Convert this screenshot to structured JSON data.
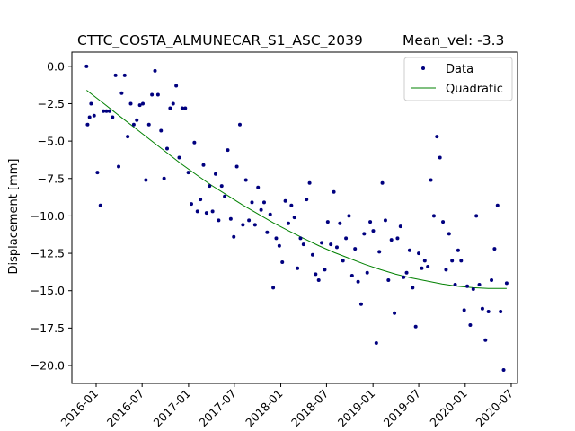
{
  "chart_data": {
    "type": "scatter",
    "title_left": "CTTC_COSTA_ALMUNECAR_S1_ASC_2039",
    "title_right": "Mean_vel: -3.3",
    "xlabel": "",
    "ylabel": "Displacement [mm]",
    "xlim": [
      "2015-09-27",
      "2020-07-26"
    ],
    "ylim": [
      -21.2,
      0.95
    ],
    "x_ticks": [
      "2016-01",
      "2016-07",
      "2017-01",
      "2017-07",
      "2018-01",
      "2018-07",
      "2019-01",
      "2019-07",
      "2020-01",
      "2020-07"
    ],
    "y_ticks": [
      0.0,
      -2.5,
      -5.0,
      -7.5,
      -10.0,
      -12.5,
      -15.0,
      -17.5,
      -20.0
    ],
    "y_tick_labels": [
      "0.0",
      "−2.5",
      "−5.0",
      "−7.5",
      "−10.0",
      "−12.5",
      "−15.0",
      "−17.5",
      "−20.0"
    ],
    "legend_position": "upper-right",
    "grid": false,
    "series": [
      {
        "name": "Data",
        "kind": "scatter",
        "color": "#00007f",
        "points": [
          [
            "2015-11-24",
            0.0
          ],
          [
            "2015-11-28",
            -3.9
          ],
          [
            "2015-12-06",
            -3.4
          ],
          [
            "2015-12-12",
            -2.5
          ],
          [
            "2015-12-24",
            -3.3
          ],
          [
            "2016-01-06",
            -7.1
          ],
          [
            "2016-01-18",
            -9.3
          ],
          [
            "2016-01-30",
            -3.0
          ],
          [
            "2016-02-11",
            -3.0
          ],
          [
            "2016-02-23",
            -3.0
          ],
          [
            "2016-03-06",
            -3.4
          ],
          [
            "2016-03-18",
            -0.6
          ],
          [
            "2016-03-30",
            -6.7
          ],
          [
            "2016-04-11",
            -1.8
          ],
          [
            "2016-04-23",
            -0.6
          ],
          [
            "2016-05-05",
            -4.7
          ],
          [
            "2016-05-17",
            -2.5
          ],
          [
            "2016-05-29",
            -3.9
          ],
          [
            "2016-06-10",
            -3.6
          ],
          [
            "2016-06-22",
            -2.6
          ],
          [
            "2016-07-04",
            -2.5
          ],
          [
            "2016-07-16",
            -7.6
          ],
          [
            "2016-07-28",
            -3.9
          ],
          [
            "2016-08-09",
            -1.9
          ],
          [
            "2016-08-21",
            -0.3
          ],
          [
            "2016-09-02",
            -1.9
          ],
          [
            "2016-09-14",
            -4.3
          ],
          [
            "2016-09-26",
            -7.5
          ],
          [
            "2016-10-08",
            -5.5
          ],
          [
            "2016-10-20",
            -2.8
          ],
          [
            "2016-11-01",
            -2.5
          ],
          [
            "2016-11-13",
            -1.3
          ],
          [
            "2016-11-25",
            -6.1
          ],
          [
            "2016-12-07",
            -2.8
          ],
          [
            "2016-12-19",
            -2.8
          ],
          [
            "2016-12-31",
            -7.1
          ],
          [
            "2017-01-12",
            -9.2
          ],
          [
            "2017-01-24",
            -5.1
          ],
          [
            "2017-02-05",
            -9.7
          ],
          [
            "2017-02-17",
            -8.9
          ],
          [
            "2017-03-01",
            -6.6
          ],
          [
            "2017-03-13",
            -9.8
          ],
          [
            "2017-03-25",
            -8.0
          ],
          [
            "2017-04-06",
            -9.7
          ],
          [
            "2017-04-18",
            -7.2
          ],
          [
            "2017-04-30",
            -10.3
          ],
          [
            "2017-05-12",
            -8.0
          ],
          [
            "2017-05-24",
            -8.7
          ],
          [
            "2017-06-05",
            -5.6
          ],
          [
            "2017-06-17",
            -10.2
          ],
          [
            "2017-06-29",
            -11.4
          ],
          [
            "2017-07-11",
            -6.7
          ],
          [
            "2017-07-23",
            -3.9
          ],
          [
            "2017-08-04",
            -10.6
          ],
          [
            "2017-08-16",
            -7.6
          ],
          [
            "2017-08-28",
            -10.3
          ],
          [
            "2017-09-09",
            -9.1
          ],
          [
            "2017-09-21",
            -10.6
          ],
          [
            "2017-10-03",
            -8.1
          ],
          [
            "2017-10-15",
            -9.6
          ],
          [
            "2017-10-27",
            -9.1
          ],
          [
            "2017-11-08",
            -11.1
          ],
          [
            "2017-11-20",
            -9.9
          ],
          [
            "2017-12-02",
            -14.8
          ],
          [
            "2017-12-14",
            -11.5
          ],
          [
            "2017-12-26",
            -12.0
          ],
          [
            "2018-01-07",
            -13.1
          ],
          [
            "2018-01-19",
            -9.0
          ],
          [
            "2018-01-31",
            -10.5
          ],
          [
            "2018-02-12",
            -9.3
          ],
          [
            "2018-02-24",
            -10.1
          ],
          [
            "2018-03-08",
            -13.5
          ],
          [
            "2018-03-20",
            -11.5
          ],
          [
            "2018-04-01",
            -11.9
          ],
          [
            "2018-04-13",
            -8.9
          ],
          [
            "2018-04-25",
            -7.8
          ],
          [
            "2018-05-07",
            -12.6
          ],
          [
            "2018-05-19",
            -13.9
          ],
          [
            "2018-05-31",
            -14.3
          ],
          [
            "2018-06-12",
            -11.8
          ],
          [
            "2018-06-24",
            -13.6
          ],
          [
            "2018-07-06",
            -10.4
          ],
          [
            "2018-07-18",
            -11.9
          ],
          [
            "2018-07-30",
            -8.4
          ],
          [
            "2018-08-11",
            -12.1
          ],
          [
            "2018-08-23",
            -10.5
          ],
          [
            "2018-09-04",
            -13.0
          ],
          [
            "2018-09-16",
            -11.5
          ],
          [
            "2018-09-28",
            -10.0
          ],
          [
            "2018-10-10",
            -14.0
          ],
          [
            "2018-10-22",
            -12.2
          ],
          [
            "2018-11-03",
            -14.4
          ],
          [
            "2018-11-15",
            -15.9
          ],
          [
            "2018-11-27",
            -11.2
          ],
          [
            "2018-12-09",
            -13.8
          ],
          [
            "2018-12-21",
            -10.4
          ],
          [
            "2019-01-02",
            -11.0
          ],
          [
            "2019-01-14",
            -18.5
          ],
          [
            "2019-01-26",
            -12.4
          ],
          [
            "2019-02-07",
            -7.8
          ],
          [
            "2019-02-19",
            -10.3
          ],
          [
            "2019-03-03",
            -14.3
          ],
          [
            "2019-03-15",
            -11.6
          ],
          [
            "2019-03-27",
            -16.5
          ],
          [
            "2019-04-08",
            -11.5
          ],
          [
            "2019-04-20",
            -10.7
          ],
          [
            "2019-05-02",
            -14.1
          ],
          [
            "2019-05-14",
            -13.8
          ],
          [
            "2019-05-26",
            -12.3
          ],
          [
            "2019-06-07",
            -14.8
          ],
          [
            "2019-06-19",
            -17.4
          ],
          [
            "2019-07-01",
            -12.5
          ],
          [
            "2019-07-13",
            -13.5
          ],
          [
            "2019-07-25",
            -13.0
          ],
          [
            "2019-08-06",
            -13.4
          ],
          [
            "2019-08-18",
            -7.6
          ],
          [
            "2019-08-30",
            -10.0
          ],
          [
            "2019-09-11",
            -4.7
          ],
          [
            "2019-09-23",
            -6.1
          ],
          [
            "2019-10-05",
            -10.4
          ],
          [
            "2019-10-17",
            -13.6
          ],
          [
            "2019-10-29",
            -11.2
          ],
          [
            "2019-11-10",
            -13.0
          ],
          [
            "2019-11-22",
            -14.6
          ],
          [
            "2019-12-04",
            -12.3
          ],
          [
            "2019-12-16",
            -13.0
          ],
          [
            "2019-12-28",
            -16.3
          ],
          [
            "2020-01-09",
            -14.7
          ],
          [
            "2020-01-21",
            -17.3
          ],
          [
            "2020-02-02",
            -14.9
          ],
          [
            "2020-02-14",
            -10.0
          ],
          [
            "2020-02-26",
            -14.6
          ],
          [
            "2020-03-09",
            -16.2
          ],
          [
            "2020-03-21",
            -18.3
          ],
          [
            "2020-04-02",
            -16.4
          ],
          [
            "2020-04-14",
            -14.3
          ],
          [
            "2020-04-26",
            -12.2
          ],
          [
            "2020-05-08",
            -9.3
          ],
          [
            "2020-05-20",
            -16.4
          ],
          [
            "2020-06-01",
            -20.3
          ],
          [
            "2020-06-13",
            -14.5
          ]
        ]
      },
      {
        "name": "Quadratic",
        "kind": "line",
        "color": "#008000",
        "points": [
          [
            "2015-11-24",
            -1.6
          ],
          [
            "2016-02-01",
            -2.5
          ],
          [
            "2016-04-01",
            -3.3
          ],
          [
            "2016-06-01",
            -4.1
          ],
          [
            "2016-08-01",
            -4.9
          ],
          [
            "2016-10-01",
            -5.7
          ],
          [
            "2016-12-01",
            -6.5
          ],
          [
            "2017-02-01",
            -7.25
          ],
          [
            "2017-04-01",
            -7.95
          ],
          [
            "2017-06-01",
            -8.6
          ],
          [
            "2017-08-01",
            -9.25
          ],
          [
            "2017-10-01",
            -9.85
          ],
          [
            "2017-12-01",
            -10.45
          ],
          [
            "2018-02-01",
            -11.0
          ],
          [
            "2018-04-01",
            -11.5
          ],
          [
            "2018-06-01",
            -12.0
          ],
          [
            "2018-08-01",
            -12.45
          ],
          [
            "2018-10-01",
            -12.85
          ],
          [
            "2018-12-01",
            -13.25
          ],
          [
            "2019-02-01",
            -13.6
          ],
          [
            "2019-04-01",
            -13.9
          ],
          [
            "2019-06-01",
            -14.15
          ],
          [
            "2019-08-01",
            -14.35
          ],
          [
            "2019-10-01",
            -14.55
          ],
          [
            "2019-12-01",
            -14.7
          ],
          [
            "2020-02-01",
            -14.8
          ],
          [
            "2020-04-01",
            -14.85
          ],
          [
            "2020-06-13",
            -14.85
          ]
        ]
      }
    ]
  }
}
